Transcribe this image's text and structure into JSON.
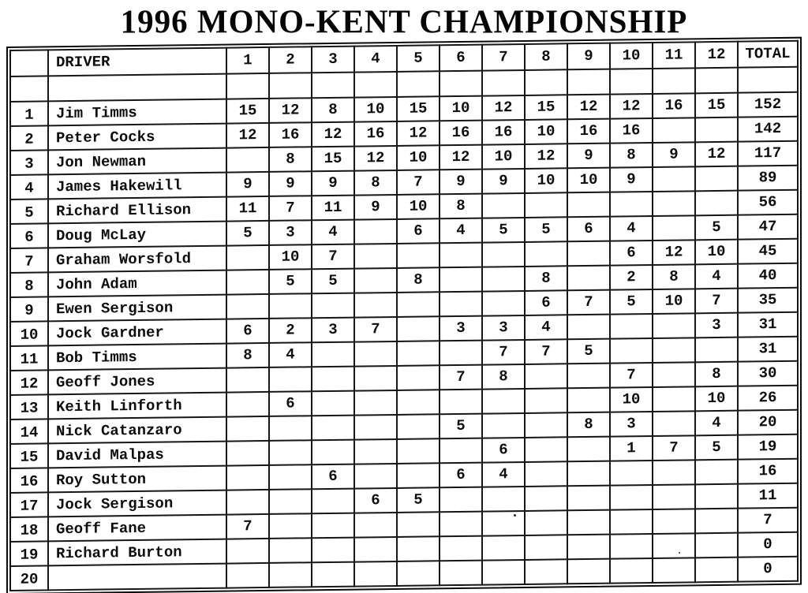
{
  "title": "1996 MONO-KENT CHAMPIONSHIP",
  "table": {
    "rank_header": "",
    "driver_header": "DRIVER",
    "round_headers": [
      "1",
      "2",
      "3",
      "4",
      "5",
      "6",
      "7",
      "8",
      "9",
      "10",
      "11",
      "12"
    ],
    "total_header": "TOTAL",
    "rows": [
      {
        "rank": "1",
        "driver": "Jim Timms",
        "scores": [
          "15",
          "12",
          "8",
          "10",
          "15",
          "10",
          "12",
          "15",
          "12",
          "12",
          "16",
          "15"
        ],
        "total": "152"
      },
      {
        "rank": "2",
        "driver": "Peter Cocks",
        "scores": [
          "12",
          "16",
          "12",
          "16",
          "12",
          "16",
          "16",
          "10",
          "16",
          "16",
          "",
          ""
        ],
        "total": "142"
      },
      {
        "rank": "3",
        "driver": "Jon Newman",
        "scores": [
          "",
          "8",
          "15",
          "12",
          "10",
          "12",
          "10",
          "12",
          "9",
          "8",
          "9",
          "12"
        ],
        "total": "117"
      },
      {
        "rank": "4",
        "driver": "James Hakewill",
        "scores": [
          "9",
          "9",
          "9",
          "8",
          "7",
          "9",
          "9",
          "10",
          "10",
          "9",
          "",
          ""
        ],
        "total": "89"
      },
      {
        "rank": "5",
        "driver": "Richard Ellison",
        "scores": [
          "11",
          "7",
          "11",
          "9",
          "10",
          "8",
          "",
          "",
          "",
          "",
          "",
          ""
        ],
        "total": "56"
      },
      {
        "rank": "6",
        "driver": "Doug McLay",
        "scores": [
          "5",
          "3",
          "4",
          "",
          "6",
          "4",
          "5",
          "5",
          "6",
          "4",
          "",
          "5"
        ],
        "total": "47"
      },
      {
        "rank": "7",
        "driver": "Graham Worsfold",
        "scores": [
          "",
          "10",
          "7",
          "",
          "",
          "",
          "",
          "",
          "",
          "6",
          "12",
          "10"
        ],
        "total": "45"
      },
      {
        "rank": "8",
        "driver": "John Adam",
        "scores": [
          "",
          "5",
          "5",
          "",
          "8",
          "",
          "",
          "8",
          "",
          "2",
          "8",
          "4"
        ],
        "total": "40"
      },
      {
        "rank": "9",
        "driver": "Ewen Sergison",
        "scores": [
          "",
          "",
          "",
          "",
          "",
          "",
          "",
          "6",
          "7",
          "5",
          "10",
          "7"
        ],
        "total": "35"
      },
      {
        "rank": "10",
        "driver": "Jock Gardner",
        "scores": [
          "6",
          "2",
          "3",
          "7",
          "",
          "3",
          "3",
          "4",
          "",
          "",
          "",
          "3"
        ],
        "total": "31"
      },
      {
        "rank": "11",
        "driver": "Bob Timms",
        "scores": [
          "8",
          "4",
          "",
          "",
          "",
          "",
          "7",
          "7",
          "5",
          "",
          "",
          ""
        ],
        "total": "31"
      },
      {
        "rank": "12",
        "driver": "Geoff Jones",
        "scores": [
          "",
          "",
          "",
          "",
          "",
          "7",
          "8",
          "",
          "",
          "7",
          "",
          "8"
        ],
        "total": "30"
      },
      {
        "rank": "13",
        "driver": "Keith Linforth",
        "scores": [
          "",
          "6",
          "",
          "",
          "",
          "",
          "",
          "",
          "",
          "10",
          "",
          "10"
        ],
        "total": "26"
      },
      {
        "rank": "14",
        "driver": "Nick Catanzaro",
        "scores": [
          "",
          "",
          "",
          "",
          "",
          "5",
          "",
          "",
          "8",
          "3",
          "",
          "4"
        ],
        "total": "20"
      },
      {
        "rank": "15",
        "driver": "David Malpas",
        "scores": [
          "",
          "",
          "",
          "",
          "",
          "",
          "6",
          "",
          "",
          "1",
          "7",
          "5"
        ],
        "total": "19"
      },
      {
        "rank": "16",
        "driver": "Roy Sutton",
        "scores": [
          "",
          "",
          "6",
          "",
          "",
          "6",
          "4",
          "",
          "",
          "",
          "",
          ""
        ],
        "total": "16"
      },
      {
        "rank": "17",
        "driver": "Jock Sergison",
        "scores": [
          "",
          "",
          "",
          "6",
          "5",
          "",
          "",
          "",
          "",
          "",
          "",
          ""
        ],
        "total": "11"
      },
      {
        "rank": "18",
        "driver": "Geoff Fane",
        "scores": [
          "7",
          "",
          "",
          "",
          "",
          "",
          "",
          "",
          "",
          "",
          "",
          ""
        ],
        "total": "7"
      },
      {
        "rank": "19",
        "driver": "Richard Burton",
        "scores": [
          "",
          "",
          "",
          "",
          "",
          "",
          "",
          "",
          "",
          "",
          "",
          ""
        ],
        "total": "0"
      },
      {
        "rank": "20",
        "driver": "",
        "scores": [
          "",
          "",
          "",
          "",
          "",
          "",
          "",
          "",
          "",
          "",
          "",
          ""
        ],
        "total": "0"
      }
    ]
  }
}
